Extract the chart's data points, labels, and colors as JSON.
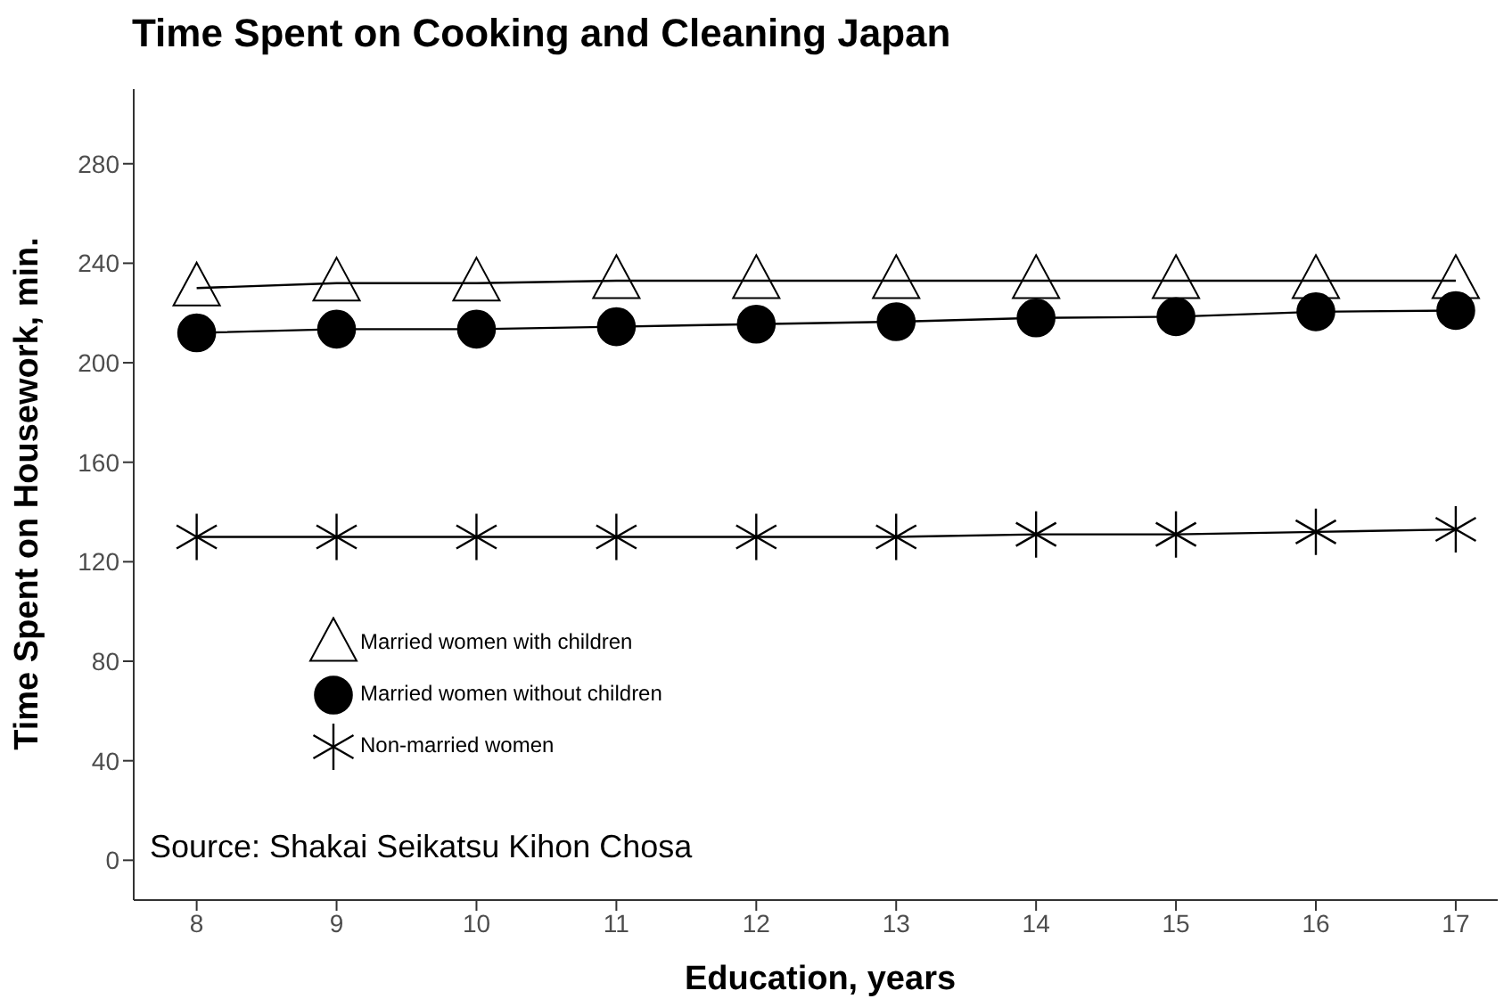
{
  "chart_data": {
    "type": "line",
    "title": "Time Spent on Cooking and Cleaning Japan",
    "xlabel": "Education, years",
    "ylabel": "Time Spent on Housework, min.",
    "x": [
      8,
      9,
      10,
      11,
      12,
      13,
      14,
      15,
      16,
      17
    ],
    "series": [
      {
        "name": "Married women with children",
        "color": "#000000",
        "marker": "triangle",
        "values": [
          230,
          232,
          232,
          233,
          233,
          233,
          233,
          233,
          233,
          233
        ]
      },
      {
        "name": "Married women without children",
        "color": "#000000",
        "marker": "circle",
        "values": [
          212,
          213.5,
          213.5,
          214.5,
          215.5,
          216.5,
          218,
          218.5,
          220.5,
          221
        ]
      },
      {
        "name": "Non-married women",
        "color": "#000000",
        "marker": "cross",
        "values": [
          130,
          130,
          130,
          130,
          130,
          130,
          131,
          131,
          132,
          133
        ]
      }
    ],
    "xlim": [
      7.55,
      17.3
    ],
    "xticks": [
      8,
      9,
      10,
      11,
      12,
      13,
      14,
      15,
      16,
      17
    ],
    "ylim": [
      -16,
      310
    ],
    "yticks": [
      0,
      40,
      80,
      120,
      160,
      200,
      240,
      280
    ],
    "grid": false,
    "legend": "bottom left",
    "annotations": [
      "Source: Shakai Seikatsu Kihon Chosa"
    ]
  }
}
